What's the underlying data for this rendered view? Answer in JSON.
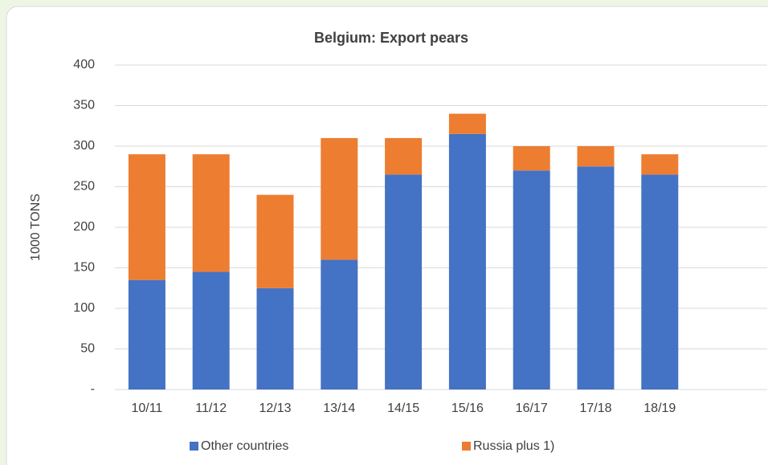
{
  "chart_data": {
    "type": "stacked_bar",
    "title": "Belgium: Export pears",
    "y_label": "1000 TONS",
    "categories": [
      "10/11",
      "11/12",
      "12/13",
      "13/14",
      "14/15",
      "15/16",
      "16/17",
      "17/18",
      "18/19"
    ],
    "series": [
      {
        "name": "Other countries",
        "color": "#4472c4",
        "values": [
          135,
          145,
          125,
          160,
          265,
          315,
          270,
          275,
          265
        ]
      },
      {
        "name": "Russia plus 1)",
        "color": "#ed7d31",
        "values": [
          155,
          145,
          115,
          150,
          45,
          25,
          30,
          25,
          25
        ]
      }
    ],
    "ylim": [
      0,
      400
    ],
    "yticks": [
      {
        "value": 0,
        "label": "-"
      },
      50,
      100,
      150,
      200,
      250,
      300,
      350,
      400
    ],
    "grid": true,
    "legend": "bottom"
  }
}
